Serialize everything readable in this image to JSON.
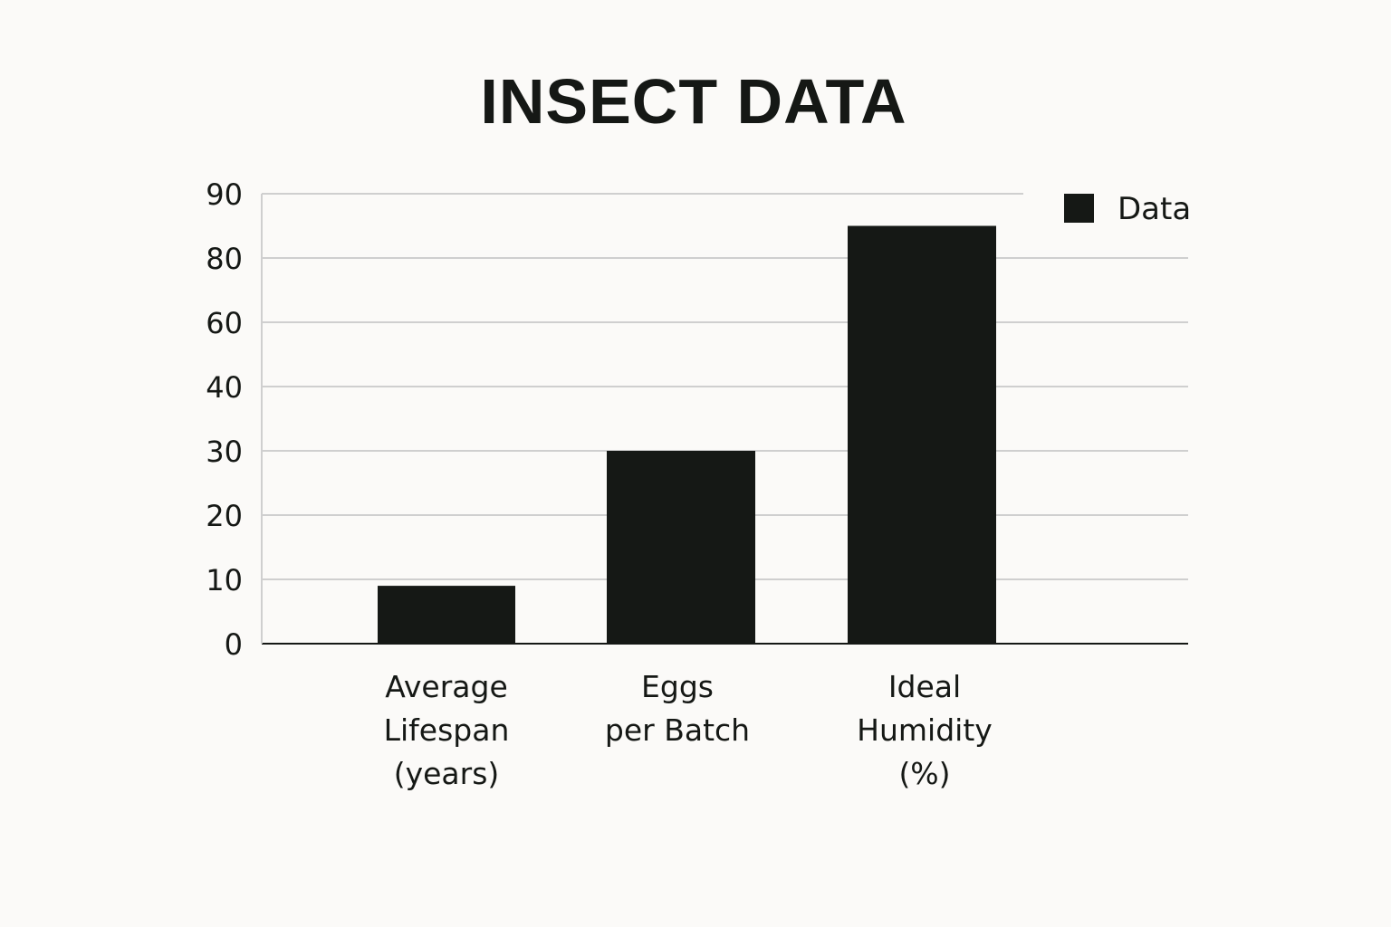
{
  "chart_data": {
    "type": "bar",
    "title": "INSECT DATA",
    "xlabel": "",
    "ylabel": "",
    "categories": [
      [
        "Average",
        "Lifespan",
        "(years)"
      ],
      [
        "Eggs",
        "per Batch"
      ],
      [
        "Ideal",
        "Humidity",
        "(%)"
      ]
    ],
    "series": [
      {
        "name": "Data",
        "values": [
          9,
          30,
          85
        ],
        "color": "#151815"
      }
    ],
    "y_ticks": [
      {
        "label": "0",
        "level": 0
      },
      {
        "label": "10",
        "level": 1
      },
      {
        "label": "20",
        "level": 2
      },
      {
        "label": "30",
        "level": 3
      },
      {
        "label": "40",
        "level": 4
      },
      {
        "label": "60",
        "level": 5
      },
      {
        "label": "80",
        "level": 6
      },
      {
        "label": "90",
        "level": 7
      }
    ],
    "legend": {
      "position": "top-right",
      "label": "Data"
    },
    "grid": true,
    "colors": {
      "background": "#fbfaf8",
      "bar": "#151815",
      "grid": "#cfcfcf",
      "axis": "#151815",
      "text": "#151815"
    }
  }
}
